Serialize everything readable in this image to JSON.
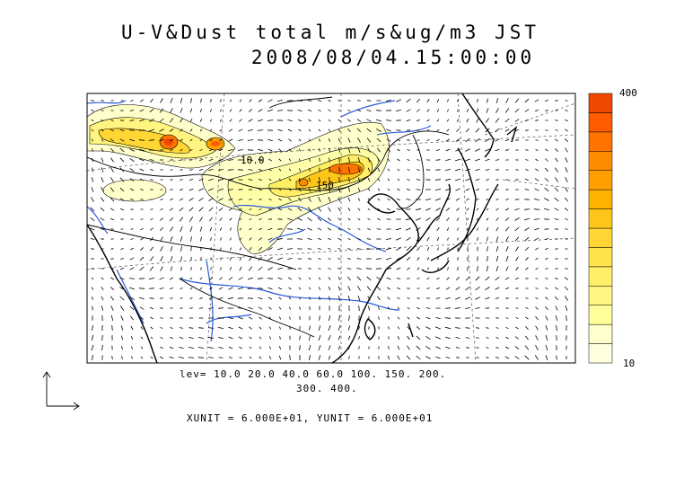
{
  "title_line1": "U-V&Dust total m/s&ug/m3 JST",
  "title_line2": "2008/08/04.15:00:00",
  "contour_labels": [
    "10.0",
    "150"
  ],
  "levels_text_line1": "lev= 10.0 20.0 40.0 60.0 100. 150. 200.",
  "levels_text_line2": "300. 400.",
  "units_text": "XUNIT = 6.000E+01, YUNIT = 6.000E+01",
  "colorbar": {
    "max_label": "400",
    "min_label": "10",
    "colors": [
      "#ffffe0",
      "#ffffcc",
      "#ffff99",
      "#fff580",
      "#ffee66",
      "#ffe34d",
      "#ffd633",
      "#ffc61a",
      "#ffb300",
      "#ff9f00",
      "#ff8c00",
      "#ff7400",
      "#ff5c00",
      "#f04800"
    ]
  },
  "colors": {
    "coast": "#000000",
    "rivers": "#2a5ad8",
    "dust_low": "#ffffcc",
    "dust_mid": "#ffd84a",
    "dust_high": "#f05a1a",
    "grid": "#555555"
  }
}
